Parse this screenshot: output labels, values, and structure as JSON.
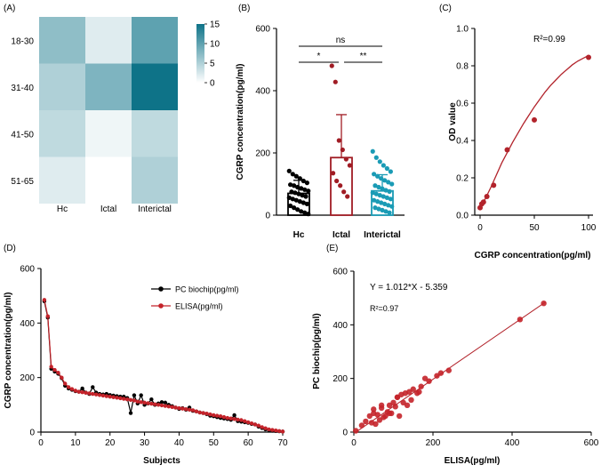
{
  "colors": {
    "hm_low": "#ffffff",
    "hm_high": "#0e7388",
    "hc": "#000000",
    "ictal": "#a01c24",
    "interictal": "#1a9bb5",
    "fit": "#b2232b",
    "pc": "#000000",
    "elisa": "#c4232a",
    "axis": "#000000"
  },
  "chart_data": [
    {
      "panel": "(A)",
      "type": "heatmap",
      "rows": [
        "18-30",
        "31-40",
        "41-50",
        "51-65"
      ],
      "cols": [
        "Hc",
        "Ictal",
        "Interictal"
      ],
      "values": [
        [
          7,
          2,
          10
        ],
        [
          5,
          8,
          15
        ],
        [
          4,
          1,
          4
        ],
        [
          2,
          0,
          5
        ]
      ],
      "colorbar": {
        "range": [
          0,
          15
        ],
        "ticks": [
          "0",
          "5",
          "10",
          "15"
        ]
      }
    },
    {
      "panel": "(B)",
      "type": "bar",
      "ylabel": "CGRP concentration(pg/ml)",
      "ylim": [
        0,
        600
      ],
      "yticks": [
        "0",
        "200",
        "400",
        "600"
      ],
      "categories": [
        "Hc",
        "Ictal",
        "Interictal"
      ],
      "means": [
        70,
        185,
        78
      ],
      "sd": [
        42,
        138,
        52
      ],
      "points": [
        [
          142,
          132,
          125,
          118,
          110,
          104,
          98,
          95,
          90,
          86,
          82,
          78,
          75,
          72,
          68,
          64,
          60,
          56,
          52,
          48,
          44,
          40,
          36,
          30,
          24,
          18,
          12,
          8,
          4
        ],
        [
          480,
          428,
          240,
          210,
          180,
          160,
          135,
          110,
          95,
          75,
          60
        ],
        [
          205,
          185,
          172,
          160,
          150,
          140,
          132,
          125,
          118,
          112,
          106,
          100,
          95,
          90,
          85,
          80,
          76,
          72,
          68,
          64,
          60,
          56,
          52,
          48,
          44,
          40,
          36,
          32,
          28,
          24,
          20,
          16,
          12,
          8
        ]
      ],
      "significance": [
        {
          "label": "ns",
          "from": 0,
          "to": 2
        },
        {
          "label": "*",
          "from": 0,
          "to": 1
        },
        {
          "label": "**",
          "from": 1,
          "to": 2
        }
      ]
    },
    {
      "panel": "(C)",
      "type": "scatter",
      "xlabel": "CGRP concentration(pg/ml)",
      "ylabel": "OD value",
      "xlim": [
        0,
        100
      ],
      "ylim": [
        0,
        1.0
      ],
      "xticks": [
        "0",
        "50",
        "100"
      ],
      "yticks": [
        "0.0",
        "0.2",
        "0.4",
        "0.6",
        "0.8",
        "1.0"
      ],
      "x": [
        0,
        1.56,
        3.125,
        6.25,
        12.5,
        25,
        50,
        100
      ],
      "y": [
        0.04,
        0.06,
        0.07,
        0.1,
        0.16,
        0.35,
        0.51,
        0.845
      ],
      "fit_x": [
        0,
        5,
        10,
        15,
        20,
        25,
        30,
        35,
        40,
        45,
        50,
        55,
        60,
        65,
        70,
        75,
        80,
        85,
        90,
        95,
        100
      ],
      "fit_y": [
        0.04,
        0.09,
        0.15,
        0.215,
        0.28,
        0.335,
        0.39,
        0.44,
        0.49,
        0.535,
        0.58,
        0.62,
        0.66,
        0.695,
        0.725,
        0.755,
        0.78,
        0.805,
        0.825,
        0.84,
        0.855
      ],
      "annotation": "R²=0.99"
    },
    {
      "panel": "(D)",
      "type": "line",
      "xlabel": "Subjects",
      "ylabel": "CGRP concentration(pg/ml)",
      "xlim": [
        0,
        70
      ],
      "ylim": [
        0,
        600
      ],
      "xticks": [
        "0",
        "10",
        "20",
        "30",
        "40",
        "50",
        "60",
        "70"
      ],
      "yticks": [
        "0",
        "200",
        "400",
        "600"
      ],
      "series": [
        {
          "name": "PC biochip(pg/ml)",
          "values": [
            480,
            420,
            232,
            222,
            214,
            198,
            170,
            160,
            155,
            150,
            148,
            160,
            145,
            140,
            165,
            145,
            140,
            138,
            140,
            136,
            134,
            132,
            130,
            130,
            125,
            70,
            135,
            105,
            135,
            100,
            105,
            120,
            100,
            105,
            110,
            108,
            100,
            95,
            90,
            85,
            88,
            82,
            90,
            78,
            76,
            72,
            70,
            66,
            60,
            58,
            55,
            52,
            50,
            48,
            45,
            62,
            40,
            38,
            36,
            34,
            30,
            28,
            20,
            15,
            10,
            8,
            5,
            4,
            3,
            2
          ]
        },
        {
          "name": "ELISA(pg/ml)",
          "values": [
            485,
            425,
            240,
            228,
            218,
            200,
            178,
            165,
            158,
            152,
            148,
            146,
            144,
            142,
            140,
            138,
            136,
            134,
            132,
            130,
            128,
            126,
            124,
            122,
            120,
            118,
            116,
            112,
            110,
            108,
            106,
            104,
            102,
            100,
            98,
            96,
            94,
            92,
            90,
            88,
            86,
            84,
            82,
            80,
            76,
            72,
            70,
            68,
            65,
            62,
            60,
            58,
            55,
            52,
            50,
            48,
            46,
            44,
            40,
            36,
            32,
            28,
            24,
            18,
            14,
            10,
            8,
            6,
            4,
            2
          ]
        }
      ]
    },
    {
      "panel": "(E)",
      "type": "scatter",
      "xlabel": "ELISA(pg/ml)",
      "ylabel": "PC biochip(pg/ml)",
      "xlim": [
        0,
        600
      ],
      "ylim": [
        0,
        600
      ],
      "xticks": [
        "0",
        "200",
        "400",
        "600"
      ],
      "yticks": [
        "0",
        "200",
        "400",
        "600"
      ],
      "x": [
        5,
        20,
        30,
        40,
        45,
        50,
        55,
        60,
        65,
        70,
        75,
        80,
        85,
        90,
        95,
        100,
        105,
        110,
        115,
        120,
        125,
        130,
        135,
        140,
        145,
        150,
        160,
        165,
        170,
        180,
        190,
        210,
        220,
        240,
        420,
        480,
        50,
        70,
        90,
        110
      ],
      "y": [
        5,
        25,
        40,
        60,
        35,
        70,
        30,
        65,
        45,
        90,
        55,
        60,
        75,
        100,
        70,
        110,
        95,
        130,
        60,
        140,
        110,
        145,
        100,
        150,
        120,
        160,
        145,
        150,
        170,
        200,
        190,
        210,
        220,
        230,
        420,
        480,
        85,
        100,
        70,
        130
      ],
      "fit": {
        "slope": 1.012,
        "intercept": -5.359
      },
      "equation": "Y = 1.012*X - 5.359",
      "r2": "R²=0.97"
    }
  ]
}
